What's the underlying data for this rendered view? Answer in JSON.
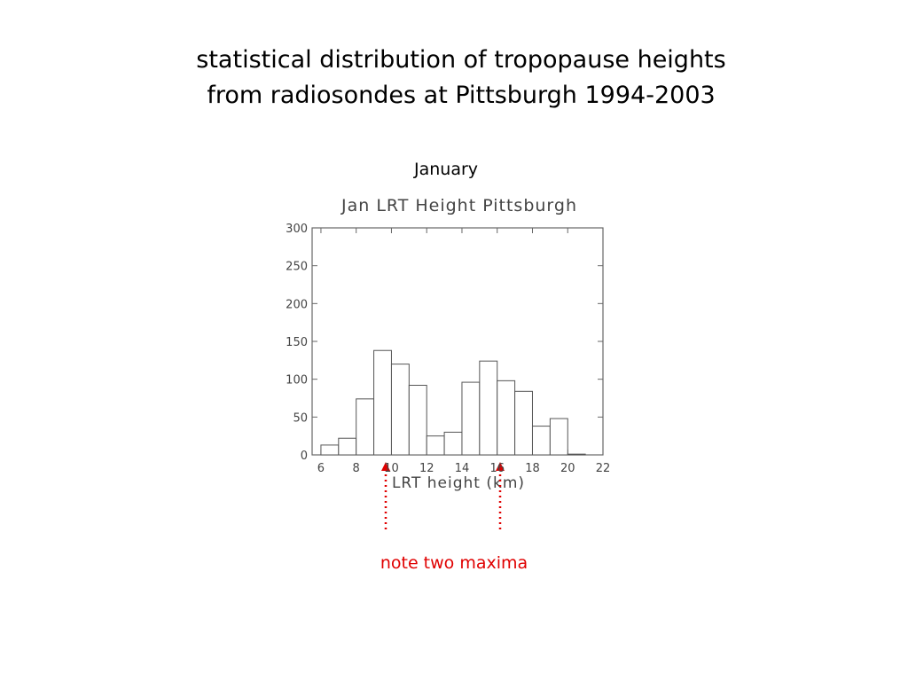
{
  "slide": {
    "title_lines": [
      "statistical distribution of tropopause heights",
      "from radiosondes at Pittsburgh 1994-2003"
    ],
    "subtitle": "January",
    "note": "note two maxima"
  },
  "chart_data": {
    "type": "histogram",
    "title": "Jan LRT Height Pittsburgh",
    "x_label": "LRT height (km)",
    "bins": [
      6,
      7,
      8,
      9,
      10,
      11,
      12,
      13,
      14,
      15,
      16,
      17,
      18,
      19,
      20,
      21
    ],
    "values": [
      13,
      22,
      74,
      138,
      120,
      92,
      25,
      30,
      96,
      124,
      98,
      84,
      38,
      48,
      1
    ],
    "color": "#555555",
    "xlim": [
      5.5,
      22
    ],
    "xticks": [
      6,
      8,
      10,
      12,
      14,
      16,
      18,
      20,
      22
    ],
    "ylim": [
      0,
      300
    ],
    "yticks": [
      0,
      50,
      100,
      150,
      200,
      250,
      300
    ]
  }
}
